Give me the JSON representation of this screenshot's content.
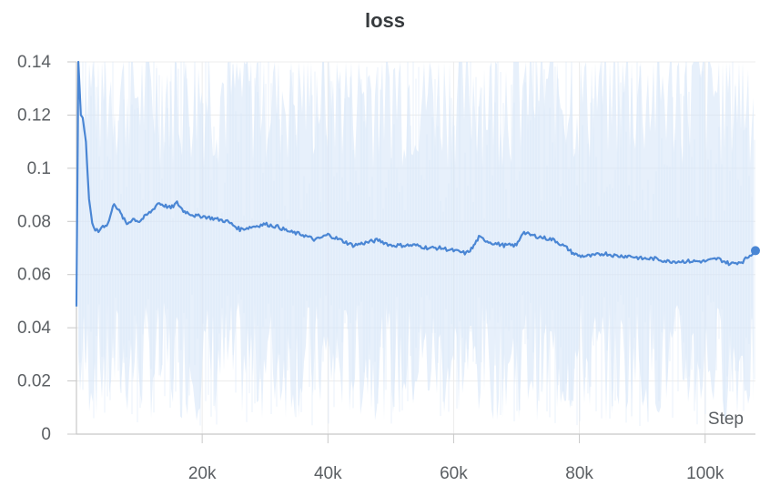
{
  "chart_data": {
    "type": "line",
    "title": "loss",
    "xlabel": "Step",
    "ylabel": "",
    "xlim": [
      0,
      108000
    ],
    "ylim": [
      0,
      0.14
    ],
    "x_ticks": [
      20000,
      40000,
      60000,
      80000,
      100000
    ],
    "x_tick_labels": [
      "20k",
      "40k",
      "60k",
      "80k",
      "100k"
    ],
    "y_ticks": [
      0,
      0.02,
      0.04,
      0.06,
      0.08,
      0.1,
      0.12,
      0.14
    ],
    "y_tick_labels": [
      "0",
      "0.02",
      "0.04",
      "0.06",
      "0.08",
      "0.1",
      "0.12",
      "0.14"
    ],
    "grid": true,
    "legend": "none",
    "colors": {
      "line": "#4a86d4",
      "raw_band": "#d7e6f8",
      "grid": "#ececec",
      "axis": "#c8c8c8"
    },
    "series": [
      {
        "x": [
          0,
          300,
          700,
          1000,
          1500,
          2000,
          2500,
          3000,
          3500,
          4000,
          5000,
          6000,
          7000,
          8000,
          9000,
          10000,
          11000,
          12000,
          13000,
          14000,
          15000,
          16000,
          17000,
          18000,
          19000,
          20000,
          22000,
          24000,
          26000,
          28000,
          30000,
          32000,
          34000,
          36000,
          38000,
          40000,
          42000,
          44000,
          46000,
          48000,
          50000,
          52000,
          54000,
          56000,
          58000,
          60000,
          62000,
          63000,
          64000,
          66000,
          68000,
          70000,
          71000,
          72000,
          74000,
          76000,
          78000,
          79000,
          80000,
          82000,
          84000,
          86000,
          88000,
          90000,
          92000,
          94000,
          96000,
          98000,
          100000,
          102000,
          104000,
          106000,
          108000
        ],
        "values": [
          0.048,
          0.14,
          0.12,
          0.119,
          0.11,
          0.088,
          0.079,
          0.077,
          0.076,
          0.078,
          0.079,
          0.087,
          0.083,
          0.079,
          0.081,
          0.08,
          0.082,
          0.084,
          0.087,
          0.086,
          0.085,
          0.087,
          0.084,
          0.083,
          0.082,
          0.082,
          0.081,
          0.08,
          0.077,
          0.078,
          0.079,
          0.078,
          0.076,
          0.075,
          0.073,
          0.075,
          0.073,
          0.071,
          0.072,
          0.073,
          0.071,
          0.071,
          0.071,
          0.07,
          0.07,
          0.069,
          0.068,
          0.07,
          0.074,
          0.072,
          0.071,
          0.071,
          0.076,
          0.075,
          0.074,
          0.073,
          0.07,
          0.068,
          0.067,
          0.067,
          0.068,
          0.067,
          0.067,
          0.066,
          0.066,
          0.065,
          0.065,
          0.065,
          0.065,
          0.066,
          0.064,
          0.065,
          0.069
        ]
      }
    ]
  }
}
